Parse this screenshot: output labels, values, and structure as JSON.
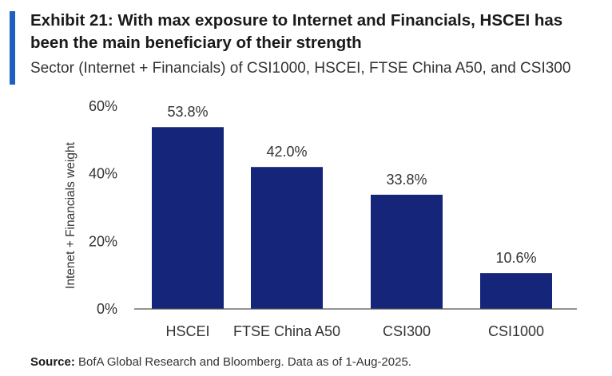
{
  "header": {
    "title": "Exhibit 21: With max exposure to Internet and Financials, HSCEI has been the main beneficiary of their strength",
    "subtitle": "Sector (Internet + Financials) of CSI1000, HSCEI, FTSE China A50, and CSI300"
  },
  "footer": {
    "source_label": "Source:",
    "source_text": "BofA Global Research and Bloomberg. Data as of 1-Aug-2025."
  },
  "colors": {
    "accent": "#1f5fbf",
    "bar": "#14257a",
    "axis": "#555555",
    "text": "#333333"
  },
  "chart_data": {
    "type": "bar",
    "title": "",
    "xlabel": "",
    "ylabel": "Intenet + Financials weight",
    "categories": [
      "HSCEI",
      "FTSE China A50",
      "CSI300",
      "CSI1000"
    ],
    "values": [
      53.8,
      42.0,
      33.8,
      10.6
    ],
    "value_labels": [
      "53.8%",
      "42.0%",
      "33.8%",
      "10.6%"
    ],
    "ylim": [
      0,
      60
    ],
    "yticks": [
      0,
      20,
      40,
      60
    ],
    "ytick_labels": [
      "0%",
      "20%",
      "40%",
      "60%"
    ],
    "grid": false,
    "legend": "none"
  }
}
